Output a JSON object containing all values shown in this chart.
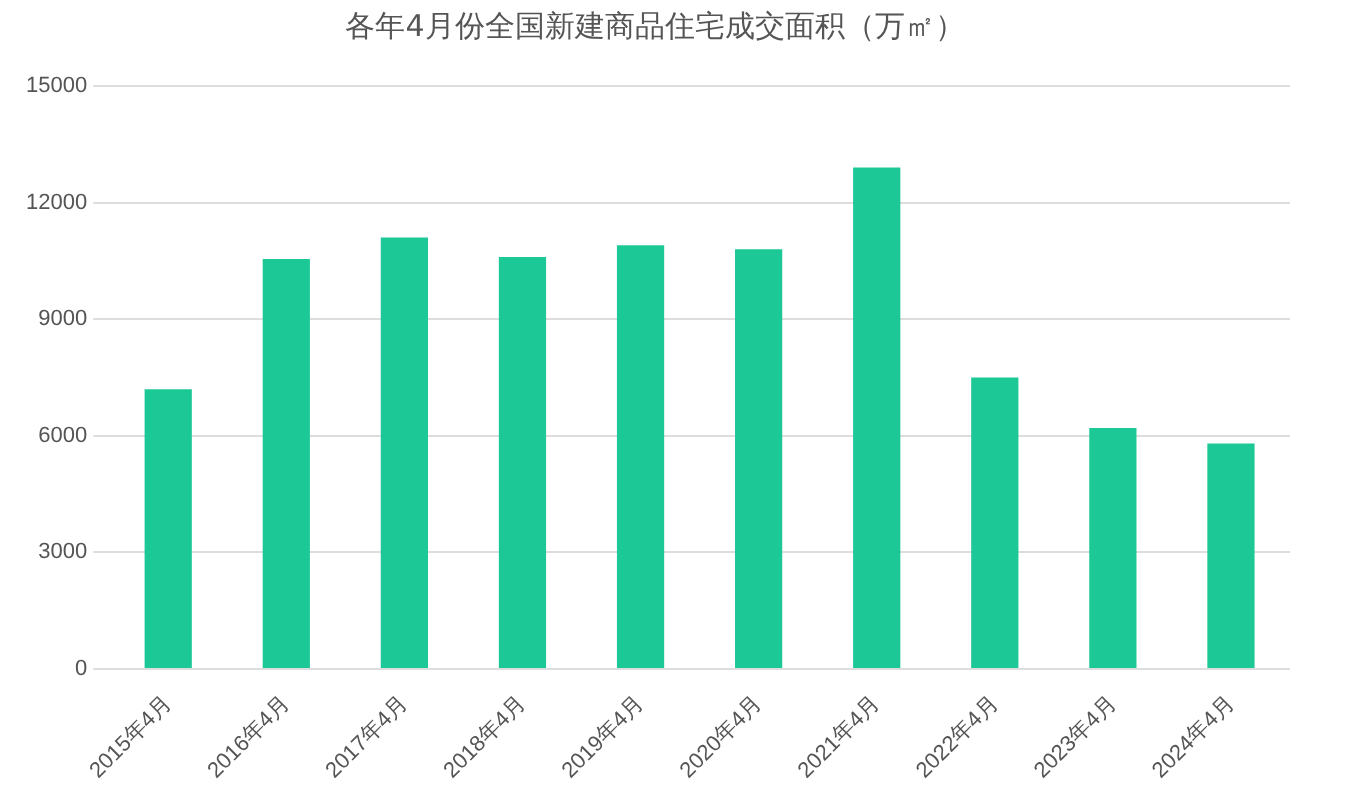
{
  "chart_data": {
    "type": "bar",
    "title": "各年4月份全国新建商品住宅成交面积（万㎡）",
    "categories": [
      "2015年4月",
      "2016年4月",
      "2017年4月",
      "2018年4月",
      "2019年4月",
      "2020年4月",
      "2021年4月",
      "2022年4月",
      "2023年4月",
      "2024年4月"
    ],
    "values": [
      7200,
      10550,
      11100,
      10600,
      10900,
      10800,
      12900,
      7500,
      6200,
      5800
    ],
    "color": "#1dc897",
    "ylim": [
      0,
      15000
    ],
    "yticks": [
      0,
      3000,
      6000,
      9000,
      12000,
      15000
    ],
    "grid": "y"
  }
}
